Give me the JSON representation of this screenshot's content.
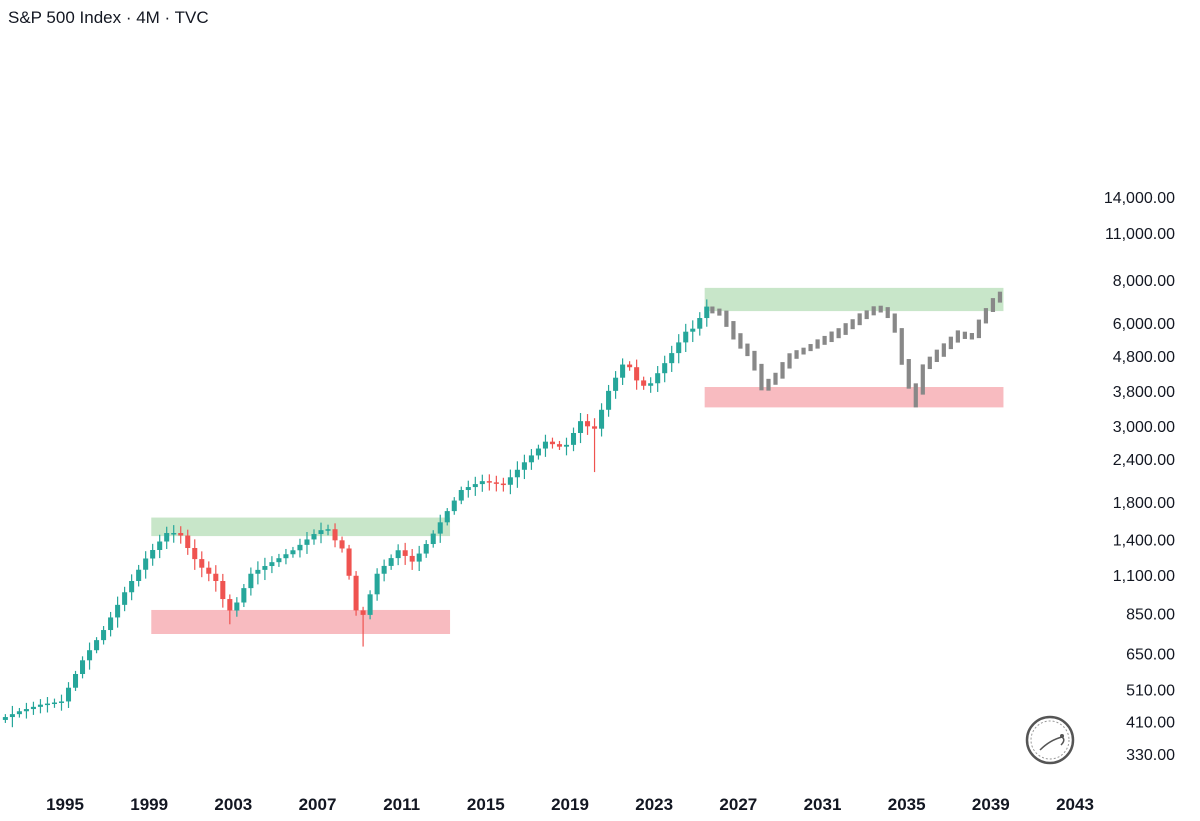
{
  "chart_data": {
    "type": "candlestick",
    "title": "S&P 500 Index · 4M · TVC",
    "scale": "log",
    "ylim": [
      300,
      14000
    ],
    "xlim": [
      1992.0,
      2043.0
    ],
    "y_ticks": [
      330,
      410,
      510,
      650,
      850,
      1100,
      1400,
      1800,
      2400,
      3000,
      3800,
      4800,
      6000,
      8000,
      11000,
      14000
    ],
    "y_tick_labels": [
      "330.00",
      "410.00",
      "510.00",
      "650.00",
      "850.00",
      "1,100.00",
      "1,400.00",
      "1,800.00",
      "2,400.00",
      "3,000.00",
      "3,800.00",
      "4,800.00",
      "6,000.00",
      "8,000.00",
      "11,000.00",
      "14,000.00"
    ],
    "x_ticks": [
      1995,
      1999,
      2003,
      2007,
      2011,
      2015,
      2019,
      2023,
      2027,
      2031,
      2035,
      2039,
      2043
    ],
    "x_tick_labels": [
      "1995",
      "1999",
      "2003",
      "2007",
      "2011",
      "2015",
      "2019",
      "2023",
      "2027",
      "2031",
      "2035",
      "2039",
      "2043"
    ],
    "colors": {
      "up": "#26a69a",
      "down": "#ef5350",
      "projection": "#888888",
      "resistance_zone": "#c8e6c9",
      "support_zone": "#f8bbc0"
    },
    "zones": [
      {
        "type": "resistance",
        "x_start": 1999.1,
        "x_end": 2013.3,
        "y_low": 1430,
        "y_high": 1620
      },
      {
        "type": "support",
        "x_start": 1999.1,
        "x_end": 2013.3,
        "y_low": 740,
        "y_high": 870
      },
      {
        "type": "resistance",
        "x_start": 2025.4,
        "x_end": 2039.6,
        "y_low": 6500,
        "y_high": 7600
      },
      {
        "type": "support",
        "x_start": 2025.4,
        "x_end": 2039.6,
        "y_low": 3400,
        "y_high": 3900
      }
    ],
    "anchors": [
      [
        1992.0,
        415
      ],
      [
        1993.0,
        440
      ],
      [
        1994.0,
        460
      ],
      [
        1995.0,
        470
      ],
      [
        1996.0,
        620
      ],
      [
        1997.0,
        760
      ],
      [
        1998.0,
        980
      ],
      [
        1999.0,
        1230
      ],
      [
        2000.0,
        1460
      ],
      [
        2000.6,
        1460
      ],
      [
        2001.0,
        1320
      ],
      [
        2001.5,
        1180
      ],
      [
        2002.3,
        1070
      ],
      [
        2002.9,
        860
      ],
      [
        2003.2,
        880
      ],
      [
        2004.0,
        1110
      ],
      [
        2005.0,
        1200
      ],
      [
        2006.0,
        1300
      ],
      [
        2007.0,
        1450
      ],
      [
        2007.6,
        1520
      ],
      [
        2008.0,
        1390
      ],
      [
        2008.5,
        1280
      ],
      [
        2008.9,
        880
      ],
      [
        2009.3,
        830
      ],
      [
        2010.0,
        1110
      ],
      [
        2011.0,
        1300
      ],
      [
        2011.7,
        1200
      ],
      [
        2012.5,
        1400
      ],
      [
        2013.3,
        1680
      ],
      [
        2014.0,
        1950
      ],
      [
        2015.0,
        2070
      ],
      [
        2016.0,
        2020
      ],
      [
        2017.0,
        2350
      ],
      [
        2018.0,
        2700
      ],
      [
        2018.9,
        2580
      ],
      [
        2019.8,
        3200
      ],
      [
        2020.2,
        2800
      ],
      [
        2021.0,
        3800
      ],
      [
        2021.8,
        4700
      ],
      [
        2022.5,
        3900
      ],
      [
        2023.0,
        4000
      ],
      [
        2024.0,
        4900
      ],
      [
        2024.7,
        5700
      ],
      [
        2025.1,
        5800
      ],
      [
        2025.6,
        6700
      ]
    ],
    "projection_anchors": [
      [
        2025.6,
        6600
      ],
      [
        2026.3,
        6400
      ],
      [
        2027.0,
        5400
      ],
      [
        2027.8,
        4700
      ],
      [
        2028.3,
        3850
      ],
      [
        2028.9,
        4200
      ],
      [
        2029.6,
        4800
      ],
      [
        2030.2,
        5000
      ],
      [
        2031.0,
        5300
      ],
      [
        2032.0,
        5700
      ],
      [
        2033.0,
        6300
      ],
      [
        2033.8,
        6700
      ],
      [
        2034.5,
        6100
      ],
      [
        2035.0,
        4400
      ],
      [
        2035.5,
        3600
      ],
      [
        2036.0,
        4600
      ],
      [
        2036.8,
        5000
      ],
      [
        2037.5,
        5600
      ],
      [
        2038.2,
        5400
      ],
      [
        2038.8,
        6400
      ],
      [
        2039.5,
        7300
      ]
    ],
    "notable_lows": [
      {
        "year": 2002.7,
        "low": 790
      },
      {
        "year": 2009.2,
        "low": 680
      },
      {
        "year": 2020.2,
        "low": 2200
      },
      {
        "year": 2035.3,
        "low": 3400
      }
    ]
  }
}
